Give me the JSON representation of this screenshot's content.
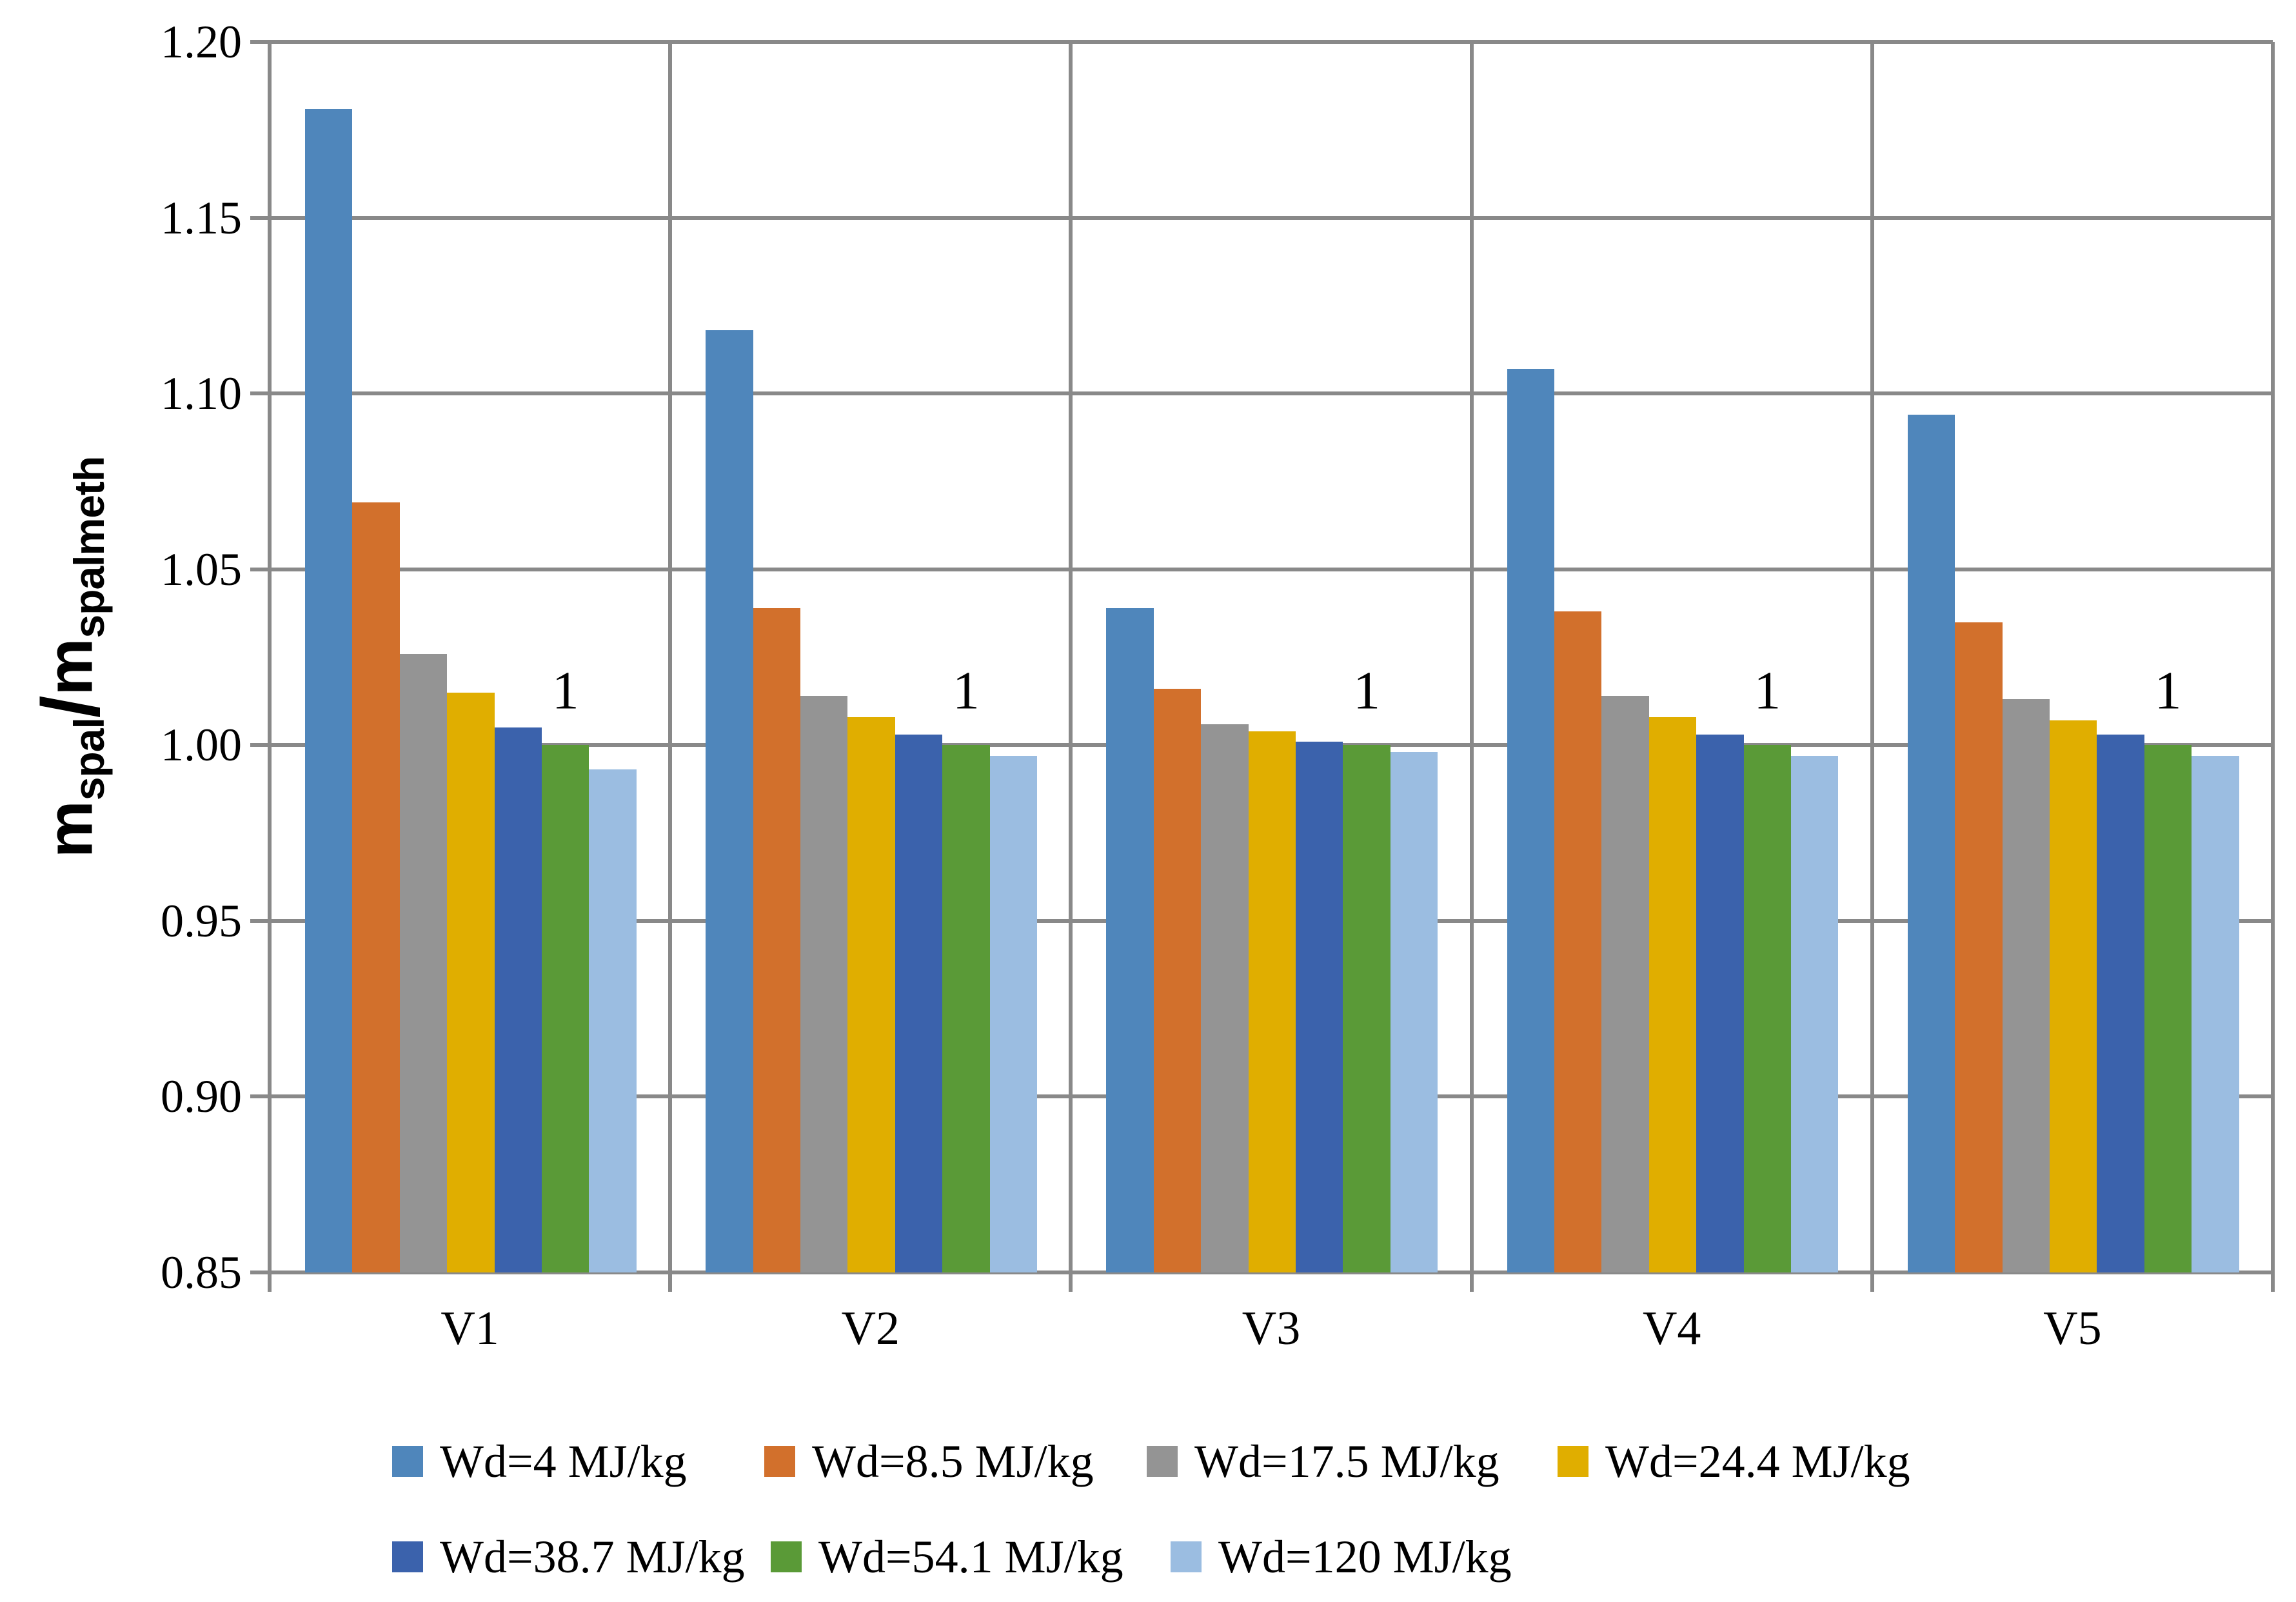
{
  "chart_data": {
    "type": "bar",
    "title": "",
    "categories": [
      "V1",
      "V2",
      "V3",
      "V4",
      "V5"
    ],
    "series": [
      {
        "name": "Wd=4 MJ/kg",
        "color": "#4F86BB",
        "values": [
          1.181,
          1.118,
          1.039,
          1.107,
          1.094
        ]
      },
      {
        "name": "Wd=8.5 MJ/kg",
        "color": "#D2702C",
        "values": [
          1.069,
          1.039,
          1.016,
          1.038,
          1.035
        ]
      },
      {
        "name": "Wd=17.5 MJ/kg",
        "color": "#949494",
        "values": [
          1.026,
          1.014,
          1.006,
          1.014,
          1.013
        ]
      },
      {
        "name": "Wd=24.4 MJ/kg",
        "color": "#E0AE00",
        "values": [
          1.015,
          1.008,
          1.004,
          1.008,
          1.007
        ]
      },
      {
        "name": "Wd=38.7 MJ/kg",
        "color": "#3B62AC",
        "values": [
          1.005,
          1.003,
          1.001,
          1.003,
          1.003
        ]
      },
      {
        "name": "Wd=54.1 MJ/kg",
        "color": "#5A9A37",
        "values": [
          1.0,
          1.0,
          1.0,
          1.0,
          1.0
        ]
      },
      {
        "name": "Wd=120 MJ/kg",
        "color": "#9BBDE1",
        "values": [
          0.993,
          0.997,
          0.998,
          0.997,
          0.997
        ]
      }
    ],
    "ylabel": {
      "m1": "m",
      "sub1": "spal",
      "sep": "/",
      "m2": "m",
      "sub2": "spalmeth"
    },
    "xlabel": "",
    "y_ticks": [
      "1.20",
      "1.15",
      "1.10",
      "1.05",
      "1.00",
      "0.95",
      "0.90",
      "0.85"
    ],
    "ylim": [
      0.85,
      1.2
    ],
    "grid": true,
    "legend_position": "bottom",
    "bar_labels": [
      {
        "series": "Wd=54.1 MJ/kg",
        "category": "V1",
        "text": "1"
      },
      {
        "series": "Wd=54.1 MJ/kg",
        "category": "V2",
        "text": "1"
      },
      {
        "series": "Wd=54.1 MJ/kg",
        "category": "V3",
        "text": "1"
      },
      {
        "series": "Wd=54.1 MJ/kg",
        "category": "V4",
        "text": "1"
      },
      {
        "series": "Wd=54.1 MJ/kg",
        "category": "V5",
        "text": "1"
      }
    ],
    "grid_color": "#898989"
  },
  "legend": {
    "rows": [
      [
        0,
        1,
        2,
        3
      ],
      [
        4,
        5,
        6
      ]
    ]
  }
}
